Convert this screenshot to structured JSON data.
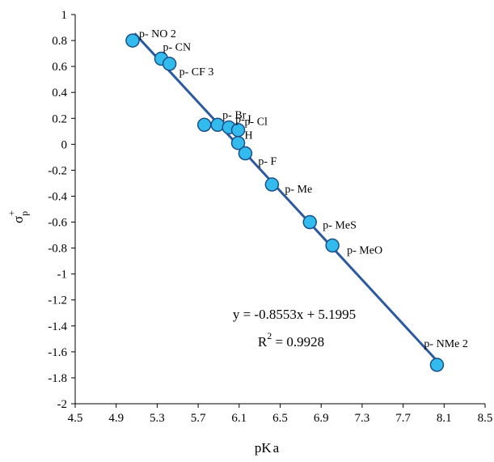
{
  "chart_data": {
    "type": "scatter",
    "xlabel_main": "pK",
    "xlabel_sub": "a",
    "ylabel_main": "σ",
    "ylabel_sub": "p",
    "ylabel_sup": "+",
    "xlim": [
      4.5,
      8.5
    ],
    "ylim": [
      -2,
      1
    ],
    "xticks": [
      "4.5",
      "4.9",
      "5.3",
      "5.7",
      "6.1",
      "6.5",
      "6.9",
      "7.3",
      "7.7",
      "8.1",
      "8.5"
    ],
    "yticks": [
      "1",
      "0.8",
      "0.6",
      "0.4",
      "0.2",
      "0",
      "-0.2",
      "-0.4",
      "-0.6",
      "-0.8",
      "-1",
      "-1.2",
      "-1.4",
      "-1.6",
      "-1.8",
      "-2"
    ],
    "grid": false,
    "marker_color": "#33bbee",
    "line_color": "#2c5aa0",
    "points": [
      {
        "label": "p- NO  2",
        "x": 5.06,
        "y": 0.8
      },
      {
        "label": "p- CN",
        "x": 5.34,
        "y": 0.66
      },
      {
        "label": "p- CF  3",
        "x": 5.42,
        "y": 0.62
      },
      {
        "label": "",
        "x": 5.76,
        "y": 0.15
      },
      {
        "label": "p- Br",
        "x": 5.89,
        "y": 0.15
      },
      {
        "label": "p- I",
        "x": 6.0,
        "y": 0.13
      },
      {
        "label": "p- Cl",
        "x": 6.09,
        "y": 0.11
      },
      {
        "label": "H",
        "x": 6.09,
        "y": 0.01
      },
      {
        "label": "p- F",
        "x": 6.16,
        "y": -0.07
      },
      {
        "label": "p- Me",
        "x": 6.42,
        "y": -0.31
      },
      {
        "label": "p- MeS",
        "x": 6.79,
        "y": -0.6
      },
      {
        "label": "p- MeO",
        "x": 7.01,
        "y": -0.78
      },
      {
        "label": "p- NMe 2",
        "x": 8.03,
        "y": -1.7
      }
    ],
    "trendline": {
      "slope": -0.8553,
      "intercept": 5.1995,
      "x_range": [
        5.08,
        8.03
      ]
    },
    "equation": "y = -0.8553x + 5.1995",
    "r2_prefix": "R",
    "r2_sup": "2",
    "r2_value": " = 0.9928"
  }
}
